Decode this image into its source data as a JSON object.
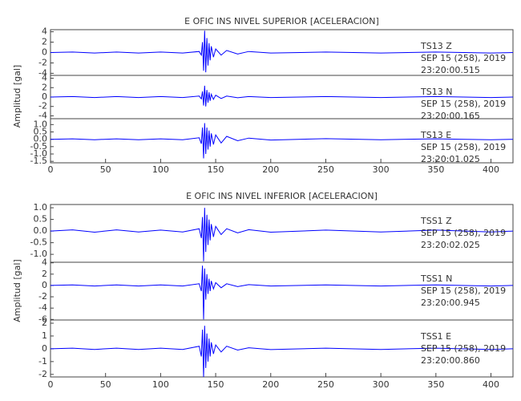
{
  "chart_data": [
    {
      "type": "line",
      "title": "E OFIC INS NIVEL SUPERIOR [ACELERACION]",
      "y_label": "Amplitud [gal]",
      "xlim": [
        0,
        420
      ],
      "xticks": [
        0,
        50,
        100,
        150,
        200,
        250,
        300,
        350,
        400
      ],
      "panels": [
        {
          "station": "TS13   Z",
          "date": "SEP 15 (258), 2019",
          "time": "23:20:00.515",
          "color": "#0000ff",
          "ylim": [
            -4.4,
            4.4
          ],
          "yticks": [
            4,
            2,
            0,
            -2,
            -4
          ],
          "x": [
            0,
            20,
            40,
            60,
            80,
            100,
            120,
            135,
            137,
            138,
            139,
            140,
            141,
            142,
            143,
            144,
            145,
            146,
            148,
            150,
            155,
            160,
            170,
            180,
            200,
            250,
            300,
            350,
            400,
            420
          ],
          "values": [
            0,
            0.1,
            -0.1,
            0.1,
            -0.1,
            0.1,
            -0.1,
            0.2,
            -0.5,
            2.0,
            -3.5,
            4.2,
            -3.8,
            2.8,
            -2.5,
            1.8,
            -1.5,
            1.2,
            -0.9,
            0.7,
            -0.5,
            0.4,
            -0.3,
            0.2,
            -0.1,
            0.1,
            -0.1,
            0.1,
            -0.1,
            0
          ]
        },
        {
          "station": "TS13   N",
          "date": "SEP 15 (258), 2019",
          "time": "23:20:00.165",
          "color": "#0000ff",
          "ylim": [
            -4.6,
            4.6
          ],
          "yticks": [
            4,
            2,
            0,
            -2,
            -4
          ],
          "x": [
            0,
            20,
            40,
            60,
            80,
            100,
            120,
            135,
            137,
            138,
            139,
            140,
            141,
            142,
            143,
            144,
            145,
            146,
            148,
            150,
            155,
            160,
            170,
            180,
            200,
            250,
            300,
            350,
            400,
            420
          ],
          "values": [
            0,
            0.1,
            -0.1,
            0.1,
            -0.1,
            0.1,
            -0.1,
            0.2,
            -0.4,
            1.2,
            -1.8,
            2.4,
            -2.0,
            1.5,
            -1.2,
            1.0,
            -0.8,
            0.6,
            -0.5,
            0.4,
            -0.3,
            0.2,
            -0.15,
            0.1,
            -0.1,
            0.1,
            -0.1,
            0.1,
            -0.1,
            0
          ]
        },
        {
          "station": "TS13   E",
          "date": "SEP 15 (258), 2019",
          "time": "23:20:01.025",
          "color": "#0000ff",
          "ylim": [
            -1.6,
            1.4
          ],
          "yticks": [
            {
              "value": 1.0,
              "label": "1.0"
            },
            0.5,
            {
              "value": 0.0,
              "label": "0.0"
            },
            -0.5,
            {
              "value": -1.0,
              "label": "-1.0"
            },
            -1.5
          ],
          "x": [
            0,
            20,
            40,
            60,
            80,
            100,
            120,
            135,
            137,
            138,
            139,
            140,
            141,
            142,
            143,
            144,
            145,
            146,
            148,
            150,
            155,
            160,
            170,
            180,
            200,
            250,
            300,
            350,
            400,
            420
          ],
          "values": [
            0,
            0.03,
            -0.03,
            0.03,
            -0.03,
            0.03,
            -0.03,
            0.1,
            -0.3,
            0.8,
            -1.3,
            1.1,
            -1.0,
            0.8,
            -0.7,
            0.6,
            -0.5,
            0.4,
            -0.35,
            0.3,
            -0.25,
            0.2,
            -0.1,
            0.08,
            -0.05,
            0.04,
            -0.03,
            0.03,
            -0.03,
            0
          ]
        }
      ]
    },
    {
      "type": "line",
      "title": "E OFIC INS NIVEL INFERIOR [ACELERACION]",
      "y_label": "Amplitud [gal]",
      "xlim": [
        0,
        420
      ],
      "xticks": [
        0,
        50,
        100,
        150,
        200,
        250,
        300,
        350,
        400
      ],
      "panels": [
        {
          "station": "TSS1   Z",
          "date": "SEP 15 (258), 2019",
          "time": "23:20:02.025",
          "color": "#0000ff",
          "ylim": [
            -1.34,
            1.14
          ],
          "yticks": [
            {
              "value": 1.0,
              "label": "1.0"
            },
            0.5,
            {
              "value": 0.0,
              "label": "0.0"
            },
            -0.5,
            {
              "value": -1.0,
              "label": "-1.0"
            }
          ],
          "x": [
            0,
            20,
            40,
            60,
            80,
            100,
            120,
            135,
            137,
            138,
            139,
            140,
            141,
            142,
            143,
            144,
            145,
            146,
            148,
            150,
            155,
            160,
            170,
            180,
            200,
            250,
            300,
            350,
            400,
            420
          ],
          "values": [
            0,
            0.05,
            -0.05,
            0.05,
            -0.04,
            0.04,
            -0.04,
            0.1,
            -0.3,
            0.6,
            -1.3,
            1.0,
            -0.9,
            0.7,
            -0.6,
            0.5,
            -0.4,
            0.3,
            -0.25,
            0.2,
            -0.15,
            0.1,
            -0.08,
            0.06,
            -0.05,
            0.04,
            -0.04,
            0.04,
            -0.04,
            0
          ]
        },
        {
          "station": "TSS1   N",
          "date": "SEP 15 (258), 2019",
          "time": "23:20:00.945",
          "color": "#0000ff",
          "ylim": [
            -6.1,
            4.1
          ],
          "yticks": [
            4,
            2,
            0,
            -2,
            -4,
            -6
          ],
          "x": [
            0,
            20,
            40,
            60,
            80,
            100,
            120,
            135,
            137,
            138,
            139,
            140,
            141,
            142,
            143,
            144,
            145,
            146,
            148,
            150,
            155,
            160,
            170,
            180,
            200,
            250,
            300,
            350,
            400,
            420
          ],
          "values": [
            0,
            0.1,
            -0.1,
            0.1,
            -0.1,
            0.1,
            -0.1,
            0.3,
            -1.0,
            3.5,
            -6.0,
            3.0,
            -2.5,
            2.0,
            -1.5,
            1.2,
            -1.0,
            0.8,
            -0.6,
            0.5,
            -0.4,
            0.3,
            -0.2,
            0.15,
            -0.1,
            0.1,
            -0.1,
            0.1,
            -0.1,
            0
          ]
        },
        {
          "station": "TSS1   E",
          "date": "SEP 15 (258), 2019",
          "time": "23:20:00.860",
          "color": "#0000ff",
          "ylim": [
            -2.2,
            2.25
          ],
          "yticks": [
            2,
            1,
            0,
            -1,
            -2
          ],
          "x": [
            0,
            20,
            40,
            60,
            80,
            100,
            120,
            135,
            137,
            138,
            139,
            140,
            141,
            142,
            143,
            144,
            145,
            146,
            148,
            150,
            155,
            160,
            170,
            180,
            200,
            250,
            300,
            350,
            400,
            420
          ],
          "values": [
            0,
            0.05,
            -0.05,
            0.05,
            -0.05,
            0.05,
            -0.05,
            0.2,
            -0.6,
            1.5,
            -2.2,
            1.8,
            -1.5,
            1.2,
            -1.0,
            0.8,
            -0.6,
            0.5,
            -0.4,
            0.3,
            -0.25,
            0.2,
            -0.1,
            0.08,
            -0.06,
            0.05,
            -0.05,
            0.05,
            -0.05,
            0
          ]
        }
      ]
    }
  ]
}
